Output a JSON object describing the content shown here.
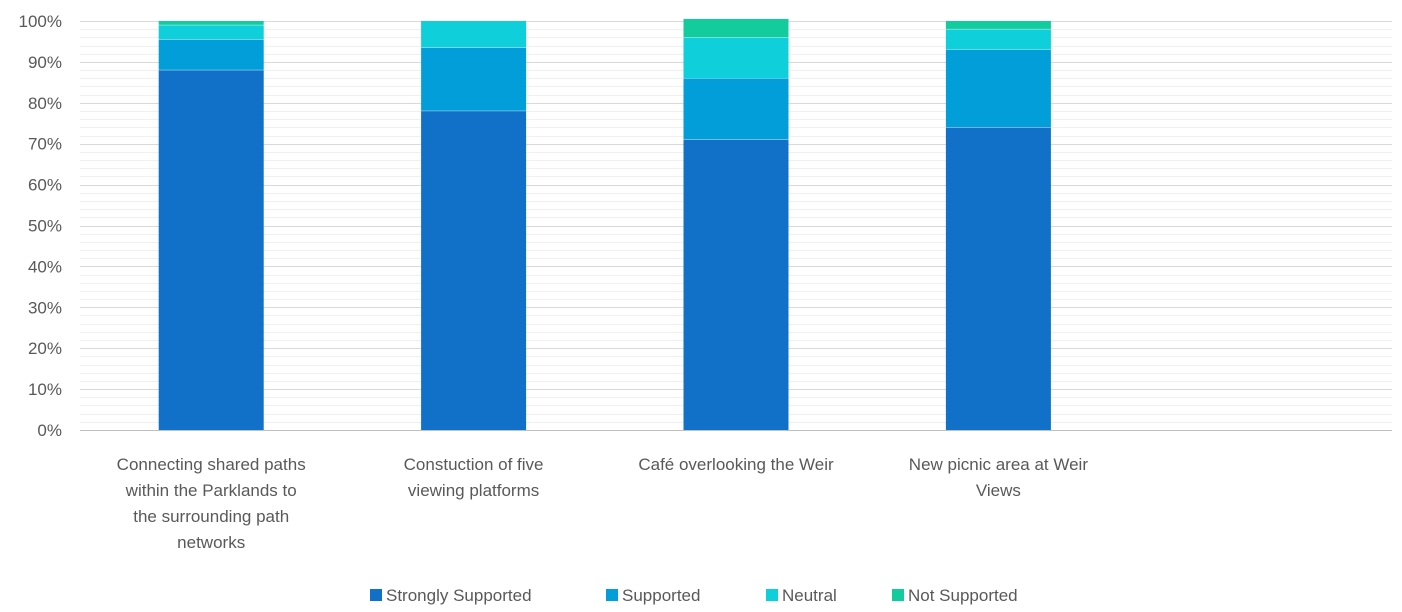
{
  "chart_data": {
    "type": "bar",
    "stacked": true,
    "percent": true,
    "categories": [
      "Connecting shared paths within the Parklands to the surrounding path networks",
      "Constuction of five viewing platforms",
      "Café overlooking the Weir",
      "New picnic area at Weir Views"
    ],
    "category_lines": [
      [
        "Connecting shared paths",
        "within the Parklands to",
        "the surrounding path",
        "networks"
      ],
      [
        "Constuction of five",
        "viewing platforms"
      ],
      [
        "Café overlooking the Weir"
      ],
      [
        "New picnic area at Weir",
        "Views"
      ]
    ],
    "series": [
      {
        "name": "Strongly Supported",
        "color": "#1170C8",
        "values": [
          88,
          78,
          71,
          74
        ]
      },
      {
        "name": "Supported",
        "color": "#029EDA",
        "values": [
          7.5,
          15.5,
          15,
          19
        ]
      },
      {
        "name": "Neutral",
        "color": "#0ECFDA",
        "values": [
          3.5,
          6.5,
          10,
          5
        ]
      },
      {
        "name": "Not Supported",
        "color": "#13CC9E",
        "values": [
          1,
          0,
          4.5,
          2
        ]
      }
    ],
    "ylim": [
      0,
      100
    ],
    "yticks": [
      "0%",
      "10%",
      "20%",
      "30%",
      "40%",
      "50%",
      "60%",
      "70%",
      "80%",
      "90%",
      "100%"
    ],
    "grid": true,
    "legend": "bottom",
    "title": "",
    "xlabel": "",
    "ylabel": ""
  }
}
